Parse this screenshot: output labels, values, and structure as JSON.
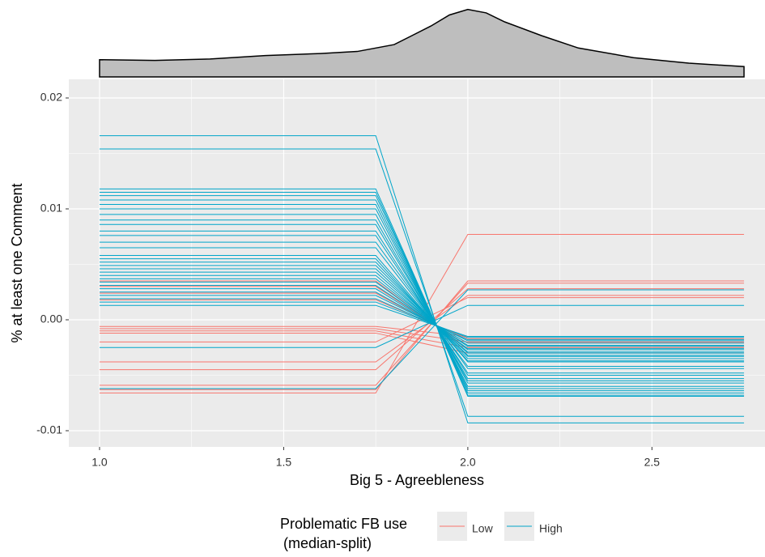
{
  "chart_data": {
    "type": "line",
    "xlabel": "Big 5 - Agreebleness",
    "ylabel": "% at least one Comment",
    "x": [
      1.0,
      1.75,
      2.0,
      2.75
    ],
    "xlim": [
      0.9165,
      2.807
    ],
    "ylim": [
      -0.01146,
      0.02168
    ],
    "xticks": [
      {
        "value": 1.0,
        "label": "1.0"
      },
      1.5,
      {
        "value": 2.0,
        "label": "2.0"
      },
      2.5
    ],
    "yticks": [
      -0.01,
      {
        "value": 0,
        "label": "0.00"
      },
      0.01,
      0.02
    ],
    "grid": true,
    "legend_title": [
      "Problematic FB use",
      "(median-split)"
    ],
    "legend_position": "bottom",
    "density": {
      "color": "#bebebe",
      "ylim": [
        0,
        1
      ],
      "x": [
        1.0,
        1.15,
        1.3,
        1.45,
        1.6,
        1.7,
        1.8,
        1.9,
        1.95,
        2.0,
        2.05,
        2.1,
        2.2,
        2.3,
        2.45,
        2.6,
        2.75
      ],
      "values": [
        0.25,
        0.24,
        0.26,
        0.31,
        0.34,
        0.37,
        0.47,
        0.74,
        0.9,
        0.98,
        0.93,
        0.8,
        0.6,
        0.42,
        0.28,
        0.2,
        0.15
      ]
    },
    "series": [
      {
        "name": "Low",
        "color": "#f8766d",
        "lines": [
          [
            -0.0066,
            -0.0066,
            0.0077,
            0.0077
          ],
          [
            -0.0063,
            -0.0063,
            0.0035,
            0.0035
          ],
          [
            -0.0059,
            -0.0059,
            0.0033,
            0.0033
          ],
          [
            -0.0045,
            -0.0045,
            0.0028,
            0.0028
          ],
          [
            -0.0038,
            -0.0038,
            0.0022,
            0.0022
          ],
          [
            -0.002,
            -0.002,
            0.002,
            0.002
          ],
          [
            -0.0012,
            -0.0012,
            -0.003,
            -0.003
          ],
          [
            -0.001,
            -0.001,
            -0.0025,
            -0.0025
          ],
          [
            -0.0008,
            -0.0008,
            -0.002,
            -0.002
          ],
          [
            -0.0006,
            -0.0006,
            -0.0015,
            -0.0015
          ],
          [
            0.0018,
            0.0018,
            -0.0017,
            -0.0017
          ],
          [
            0.0024,
            0.0024,
            -0.0021,
            -0.0021
          ],
          [
            0.003,
            0.003,
            -0.0024,
            -0.0024
          ],
          [
            0.0035,
            0.0035,
            -0.0027,
            -0.0027
          ]
        ]
      },
      {
        "name": "High",
        "color": "#00a5c9",
        "lines": [
          [
            0.0166,
            0.0166,
            -0.0093,
            -0.0093
          ],
          [
            0.0154,
            0.0154,
            -0.0087,
            -0.0087
          ],
          [
            0.0118,
            0.0118,
            -0.0069,
            -0.0069
          ],
          [
            0.0115,
            0.0115,
            -0.0068,
            -0.0068
          ],
          [
            0.0112,
            0.0112,
            -0.0066,
            -0.0066
          ],
          [
            0.0108,
            0.0108,
            -0.0064,
            -0.0064
          ],
          [
            0.0104,
            0.0104,
            -0.0062,
            -0.0062
          ],
          [
            0.01,
            0.01,
            -0.006,
            -0.006
          ],
          [
            0.0095,
            0.0095,
            -0.0057,
            -0.0057
          ],
          [
            0.009,
            0.009,
            -0.0055,
            -0.0055
          ],
          [
            0.0086,
            0.0086,
            -0.0053,
            -0.0053
          ],
          [
            0.008,
            0.008,
            -0.005,
            -0.005
          ],
          [
            0.0076,
            0.0076,
            -0.0048,
            -0.0048
          ],
          [
            0.007,
            0.007,
            -0.0044,
            -0.0044
          ],
          [
            0.0065,
            0.0065,
            -0.0042,
            -0.0042
          ],
          [
            0.0058,
            0.0058,
            -0.0038,
            -0.0038
          ],
          [
            0.0055,
            0.0055,
            -0.0037,
            -0.0037
          ],
          [
            0.0052,
            0.0052,
            -0.0035,
            -0.0035
          ],
          [
            0.0049,
            0.0049,
            -0.0033,
            -0.0033
          ],
          [
            0.0046,
            0.0046,
            -0.0032,
            -0.0032
          ],
          [
            0.0043,
            0.0043,
            -0.003,
            -0.003
          ],
          [
            0.004,
            0.004,
            -0.0029,
            -0.0029
          ],
          [
            0.0037,
            0.0037,
            -0.0027,
            -0.0027
          ],
          [
            0.0034,
            0.0034,
            -0.0026,
            -0.0026
          ],
          [
            0.0031,
            0.0031,
            -0.0024,
            -0.0024
          ],
          [
            0.0028,
            0.0028,
            -0.0023,
            -0.0023
          ],
          [
            0.0025,
            0.0025,
            -0.0021,
            -0.0021
          ],
          [
            0.0022,
            0.0022,
            -0.0019,
            -0.0019
          ],
          [
            0.0019,
            0.0019,
            -0.0018,
            -0.0018
          ],
          [
            0.0016,
            0.0016,
            -0.0016,
            -0.0016
          ],
          [
            0.0013,
            0.0013,
            -0.0015,
            -0.0015
          ],
          [
            -0.0025,
            -0.0025,
            0.0013,
            0.0013
          ],
          [
            -0.0062,
            -0.0062,
            0.0027,
            0.0027
          ]
        ]
      }
    ]
  }
}
